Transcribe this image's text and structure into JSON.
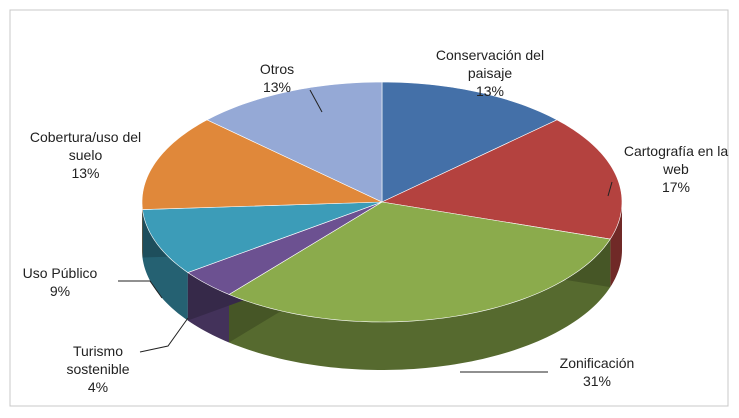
{
  "chart_data": {
    "type": "pie3d",
    "categories": [
      "Conservación del paisaje",
      "Cartografía en la web",
      "Zonificación",
      "Turismo sostenible",
      "Uso Público",
      "Cobertura/uso del suelo",
      "Otros"
    ],
    "values": [
      13,
      17,
      31,
      4,
      9,
      13,
      13
    ],
    "value_labels": [
      "13%",
      "17%",
      "31%",
      "4%",
      "9%",
      "13%",
      "13%"
    ],
    "colors": [
      "#4470a8",
      "#b4423f",
      "#8bab4c",
      "#6c5191",
      "#3c9cb8",
      "#e0883a",
      "#95a9d6"
    ]
  }
}
